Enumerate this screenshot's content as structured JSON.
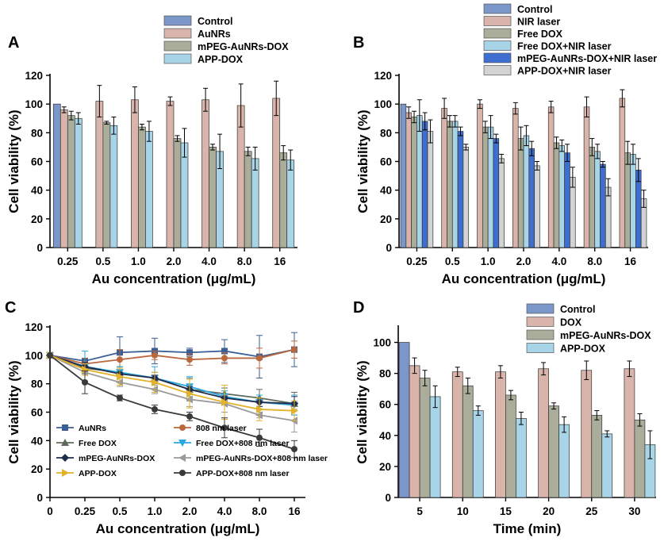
{
  "chart_data": [
    {
      "panel": "A",
      "type": "bar",
      "xlabel": "Au concentration (μg/mL)",
      "ylabel": "Cell viability (%)",
      "ylim": [
        0,
        120
      ],
      "yticks": [
        0,
        20,
        40,
        60,
        80,
        100,
        120
      ],
      "categories": [
        "0.25",
        "0.5",
        "1.0",
        "2.0",
        "4.0",
        "8.0",
        "16"
      ],
      "legend_position": "top-left",
      "series": [
        {
          "name": "Control",
          "color": "#7b97c9",
          "values": [
            100,
            null,
            null,
            null,
            null,
            null,
            null
          ],
          "errors": [
            0,
            0,
            0,
            0,
            0,
            0,
            0
          ]
        },
        {
          "name": "AuNRs",
          "color": "#d9b4aa",
          "values": [
            96,
            102,
            103,
            102,
            103,
            99,
            104
          ],
          "errors": [
            2,
            11,
            9,
            3,
            8,
            15,
            12
          ]
        },
        {
          "name": "mPEG-AuNRs-DOX",
          "color": "#a9ad9a",
          "values": [
            92,
            87,
            84,
            76,
            70,
            67,
            66
          ],
          "errors": [
            3,
            1,
            2,
            2,
            2,
            3,
            5
          ]
        },
        {
          "name": "APP-DOX",
          "color": "#a8d4e8",
          "values": [
            90,
            85,
            81,
            73,
            67,
            62,
            61
          ],
          "errors": [
            4,
            6,
            7,
            10,
            12,
            8,
            7
          ]
        }
      ]
    },
    {
      "panel": "B",
      "type": "bar",
      "xlabel": "Au concentration (μg/mL)",
      "ylabel": "Cell viability (%)",
      "ylim": [
        0,
        120
      ],
      "yticks": [
        0,
        20,
        40,
        60,
        80,
        100,
        120
      ],
      "categories": [
        "0.25",
        "0.5",
        "1.0",
        "2.0",
        "4.0",
        "8.0",
        "16"
      ],
      "legend_position": "top-left",
      "series": [
        {
          "name": "Control",
          "color": "#7b97c9",
          "values": [
            100,
            null,
            null,
            null,
            null,
            null,
            null
          ],
          "errors": [
            0,
            0,
            0,
            0,
            0,
            0,
            0
          ]
        },
        {
          "name": "NIR laser",
          "color": "#d9b4aa",
          "values": [
            94,
            97,
            100,
            97,
            98,
            98,
            104
          ],
          "errors": [
            4,
            7,
            3,
            4,
            4,
            7,
            6
          ]
        },
        {
          "name": "Free DOX",
          "color": "#a9ad9a",
          "values": [
            91,
            88,
            84,
            76,
            73,
            70,
            66
          ],
          "errors": [
            4,
            4,
            4,
            8,
            4,
            6,
            8
          ]
        },
        {
          "name": "Free DOX+NIR laser",
          "color": "#a8d4e8",
          "values": [
            92,
            88,
            84,
            78,
            71,
            67,
            65
          ],
          "errors": [
            11,
            4,
            8,
            7,
            4,
            5,
            7
          ]
        },
        {
          "name": "mPEG-AuNRs-DOX+NIR laser",
          "color": "#3f6ed1",
          "values": [
            88,
            81,
            76,
            69,
            66,
            58,
            54
          ],
          "errors": [
            6,
            3,
            3,
            5,
            6,
            2,
            8
          ]
        },
        {
          "name": "APP-DOX+NIR laser",
          "color": "#d3d3d3",
          "values": [
            81,
            70,
            62,
            57,
            49,
            42,
            34
          ],
          "errors": [
            8,
            2,
            3,
            3,
            7,
            6,
            6
          ]
        }
      ]
    },
    {
      "panel": "C",
      "type": "line",
      "xlabel": "Au concentration (μg/mL)",
      "ylabel": "Cell viability (%)",
      "ylim": [
        0,
        120
      ],
      "yticks": [
        0,
        20,
        40,
        60,
        80,
        100,
        120
      ],
      "categories": [
        "0",
        "0.25",
        "0.5",
        "1.0",
        "2.0",
        "4.0",
        "8.0",
        "16"
      ],
      "legend_position": "bottom-left",
      "series": [
        {
          "name": "AuNRs",
          "color": "#3a5f96",
          "marker": "square",
          "values": [
            100,
            96,
            102,
            103,
            102,
            103,
            99,
            104
          ],
          "errors": [
            0,
            2,
            11,
            9,
            3,
            8,
            15,
            12
          ]
        },
        {
          "name": "808 nm laser",
          "color": "#b8683c",
          "marker": "circle",
          "values": [
            100,
            94,
            97,
            100,
            97,
            98,
            98,
            104
          ],
          "errors": [
            0,
            4,
            7,
            3,
            4,
            4,
            7,
            6
          ]
        },
        {
          "name": "Free DOX",
          "color": "#5e6b5a",
          "marker": "triangle",
          "values": [
            100,
            91,
            88,
            84,
            76,
            73,
            70,
            66
          ],
          "errors": [
            0,
            4,
            4,
            4,
            8,
            4,
            6,
            8
          ]
        },
        {
          "name": "Free DOX+808 nm laser",
          "color": "#2aa7de",
          "marker": "triangle-down",
          "values": [
            100,
            92,
            88,
            84,
            78,
            71,
            67,
            65
          ],
          "errors": [
            0,
            11,
            4,
            8,
            7,
            4,
            5,
            7
          ]
        },
        {
          "name": "mPEG-AuNRs-DOX",
          "color": "#1f2d4d",
          "marker": "diamond",
          "values": [
            100,
            92,
            87,
            84,
            76,
            70,
            67,
            66
          ],
          "errors": [
            0,
            3,
            1,
            2,
            2,
            2,
            3,
            5
          ]
        },
        {
          "name": "mPEG-AuNRs-DOX+808 nm laser",
          "color": "#9a9a9a",
          "marker": "triangle-left",
          "values": [
            100,
            88,
            81,
            76,
            69,
            66,
            58,
            54
          ],
          "errors": [
            0,
            6,
            3,
            3,
            5,
            6,
            2,
            8
          ]
        },
        {
          "name": "APP-DOX",
          "color": "#e3b22a",
          "marker": "triangle-right",
          "values": [
            100,
            90,
            85,
            81,
            73,
            67,
            62,
            61
          ],
          "errors": [
            0,
            4,
            6,
            7,
            10,
            12,
            8,
            7
          ]
        },
        {
          "name": "APP-DOX+808 nm laser",
          "color": "#3a3a3a",
          "marker": "hexagon",
          "values": [
            100,
            81,
            70,
            62,
            57,
            49,
            42,
            34
          ],
          "errors": [
            0,
            8,
            2,
            3,
            3,
            7,
            6,
            6
          ]
        }
      ]
    },
    {
      "panel": "D",
      "type": "bar",
      "xlabel": "Time (min)",
      "ylabel": "Cell viability (%)",
      "ylim": [
        0,
        110
      ],
      "yticks": [
        0,
        20,
        40,
        60,
        80,
        100
      ],
      "categories": [
        "5",
        "10",
        "15",
        "20",
        "25",
        "30"
      ],
      "legend_position": "top-left",
      "series": [
        {
          "name": "Control",
          "color": "#7b97c9",
          "values": [
            100,
            null,
            null,
            null,
            null,
            null
          ],
          "errors": [
            0,
            0,
            0,
            0,
            0,
            0
          ]
        },
        {
          "name": "DOX",
          "color": "#d9b4aa",
          "values": [
            85,
            81,
            81,
            83,
            82,
            83
          ],
          "errors": [
            5,
            3,
            4,
            4,
            6,
            5
          ]
        },
        {
          "name": "mPEG-AuNRs-DOX",
          "color": "#a9ad9a",
          "values": [
            77,
            72,
            66,
            59,
            53,
            50
          ],
          "errors": [
            5,
            5,
            3,
            2,
            3,
            4
          ]
        },
        {
          "name": "APP-DOX",
          "color": "#a8d4e8",
          "values": [
            65,
            56,
            51,
            47,
            41,
            34
          ],
          "errors": [
            7,
            3,
            4,
            5,
            2,
            9
          ]
        }
      ]
    }
  ]
}
